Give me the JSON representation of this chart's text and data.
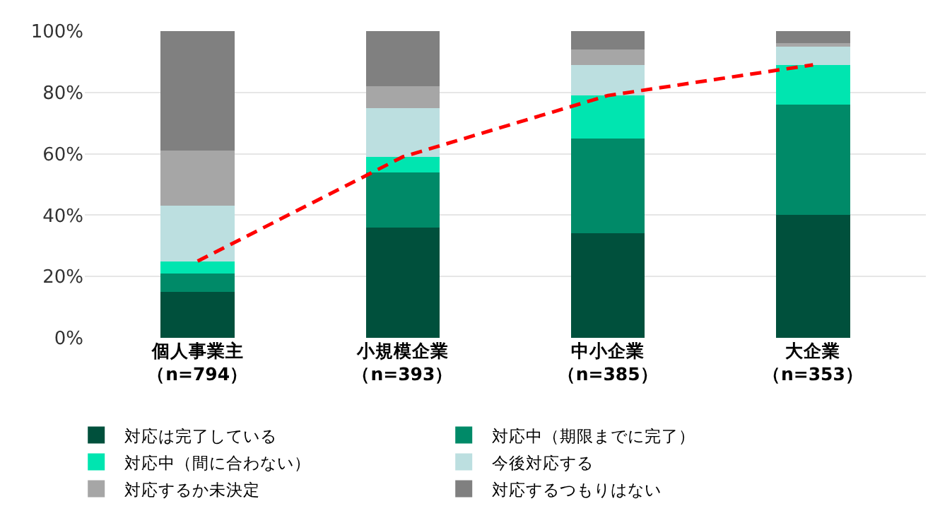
{
  "chart_data": {
    "type": "bar",
    "stacked": true,
    "categories": [
      "個人事業主（n=794）",
      "小規模企業（n=393）",
      "中小企業（n=385）",
      "大企業（n=353）"
    ],
    "series": [
      {
        "name": "対応は完了している",
        "color": "#00503c",
        "values": [
          15,
          36,
          34,
          40
        ]
      },
      {
        "name": "対応中（期限までに完了）",
        "color": "#008a68",
        "values": [
          6,
          18,
          31,
          36
        ]
      },
      {
        "name": "対応中（間に合わない）",
        "color": "#00e5b0",
        "values": [
          4,
          5,
          14,
          13
        ]
      },
      {
        "name": "今後対応する",
        "color": "#bcdfe0",
        "values": [
          18,
          16,
          10,
          6
        ]
      },
      {
        "name": "対応するか未決定",
        "color": "#a6a6a6",
        "values": [
          18,
          7,
          5,
          1
        ]
      },
      {
        "name": "対応するつもりはない",
        "color": "#808080",
        "values": [
          39,
          18,
          6,
          4
        ]
      },
      {
        "type": "line",
        "color": "#ff0000",
        "line_style": "dashed",
        "marker": "none",
        "values": [
          25,
          59,
          79,
          89
        ]
      }
    ],
    "ylim": [
      0,
      100
    ],
    "yticks": [
      {
        "value": 0,
        "label": "0%"
      },
      {
        "value": 20,
        "label": "20%"
      },
      {
        "value": 40,
        "label": "40%"
      },
      {
        "value": 60,
        "label": "60%"
      },
      {
        "value": 80,
        "label": "80%"
      },
      {
        "value": 100,
        "label": "100%"
      }
    ],
    "grid": "y",
    "legend": "bottom"
  }
}
